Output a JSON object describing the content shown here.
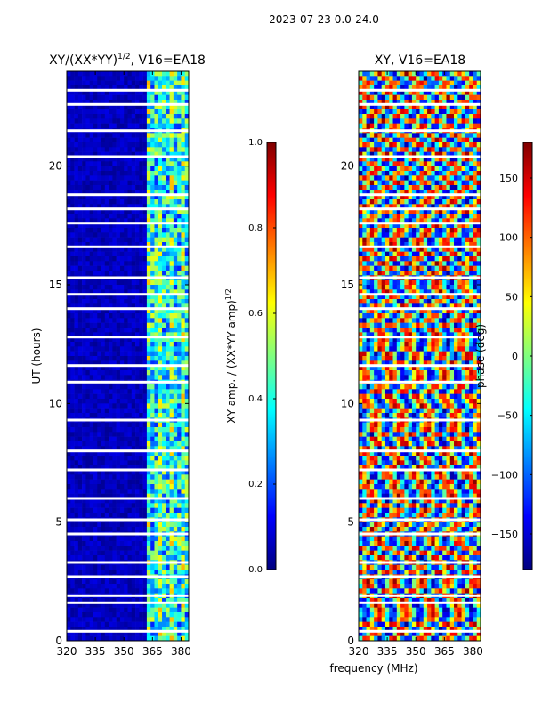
{
  "suptitle": "2023-07-23 0.0-24.0",
  "shared_xlabel": "frequency (MHz)",
  "chart_data": [
    {
      "type": "heatmap",
      "id": "amp",
      "title_main": "XY/(XX*YY)",
      "title_sup": "1/2",
      "title_tail": ", V16=EA18",
      "xlabel": "",
      "ylabel": "UT (hours)",
      "xlim": [
        320,
        384
      ],
      "ylim": [
        0,
        24
      ],
      "xticks": [
        320,
        335,
        350,
        365,
        380
      ],
      "yticks": [
        0,
        5,
        10,
        15,
        20
      ],
      "colormap": "jet",
      "colorbar": {
        "label_main": "XY amp. / (XX*YY amp)",
        "label_sup": "1/2",
        "min": 0.0,
        "max": 1.0,
        "ticks": [
          "0.0",
          "0.2",
          "0.4",
          "0.6",
          "0.8",
          "1.0"
        ],
        "tick_values": [
          0.0,
          0.2,
          0.4,
          0.6,
          0.8,
          1.0
        ]
      }
    },
    {
      "type": "heatmap",
      "id": "phase",
      "title_main": "XY, V16=EA18",
      "title_sup": "",
      "title_tail": "",
      "xlabel": "",
      "ylabel": "",
      "xlim": [
        320,
        384
      ],
      "ylim": [
        0,
        24
      ],
      "xticks": [
        320,
        335,
        350,
        365,
        380
      ],
      "yticks": [
        0,
        5,
        10,
        15,
        20
      ],
      "colormap": "jet",
      "colorbar": {
        "label_main": "phase (deg)",
        "label_sup": "",
        "min": -180,
        "max": 180,
        "ticks": [
          "−150",
          "−100",
          "−50",
          "0",
          "50",
          "100",
          "150"
        ],
        "tick_values": [
          -150,
          -100,
          -50,
          0,
          50,
          100,
          150
        ]
      }
    }
  ],
  "flagged_hours": [
    0.4,
    1.6,
    1.9,
    2.7,
    3.3,
    4.5,
    5.1,
    6.0,
    7.2,
    8.0,
    9.3,
    10.9,
    11.6,
    12.8,
    14.0,
    14.6,
    15.3,
    16.6,
    17.6,
    18.2,
    18.8,
    20.4,
    21.5,
    22.6,
    23.2
  ]
}
